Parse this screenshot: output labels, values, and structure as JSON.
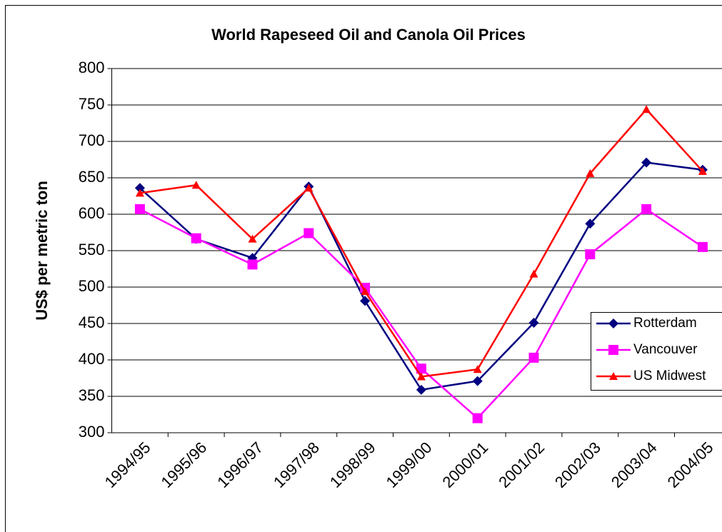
{
  "chart_data": {
    "type": "line",
    "title": "World Rapeseed Oil and Canola Oil Prices",
    "y_label": "US$ per metric ton",
    "categories": [
      "1994/95",
      "1995/96",
      "1996/97",
      "1997/98",
      "1998/99",
      "1999/00",
      "2000/01",
      "2001/02",
      "2002/03",
      "2003/04",
      "2004/05"
    ],
    "series": [
      {
        "name": "Rotterdam",
        "color": "#000080",
        "marker": "diamond",
        "values": [
          636,
          566,
          540,
          638,
          481,
          359,
          371,
          451,
          587,
          671,
          661
        ]
      },
      {
        "name": "Vancouver",
        "color": "#ff00ff",
        "marker": "square",
        "values": [
          607,
          567,
          531,
          574,
          499,
          388,
          320,
          403,
          545,
          607,
          555
        ]
      },
      {
        "name": "US Midwest",
        "color": "#ff0000",
        "marker": "triangle",
        "values": [
          629,
          640,
          566,
          636,
          494,
          377,
          387,
          518,
          656,
          744,
          659
        ]
      }
    ],
    "ylim": [
      300,
      800
    ],
    "yticks": [
      300,
      350,
      400,
      450,
      500,
      550,
      600,
      650,
      700,
      750,
      800
    ],
    "grid": true,
    "legend": "right"
  }
}
